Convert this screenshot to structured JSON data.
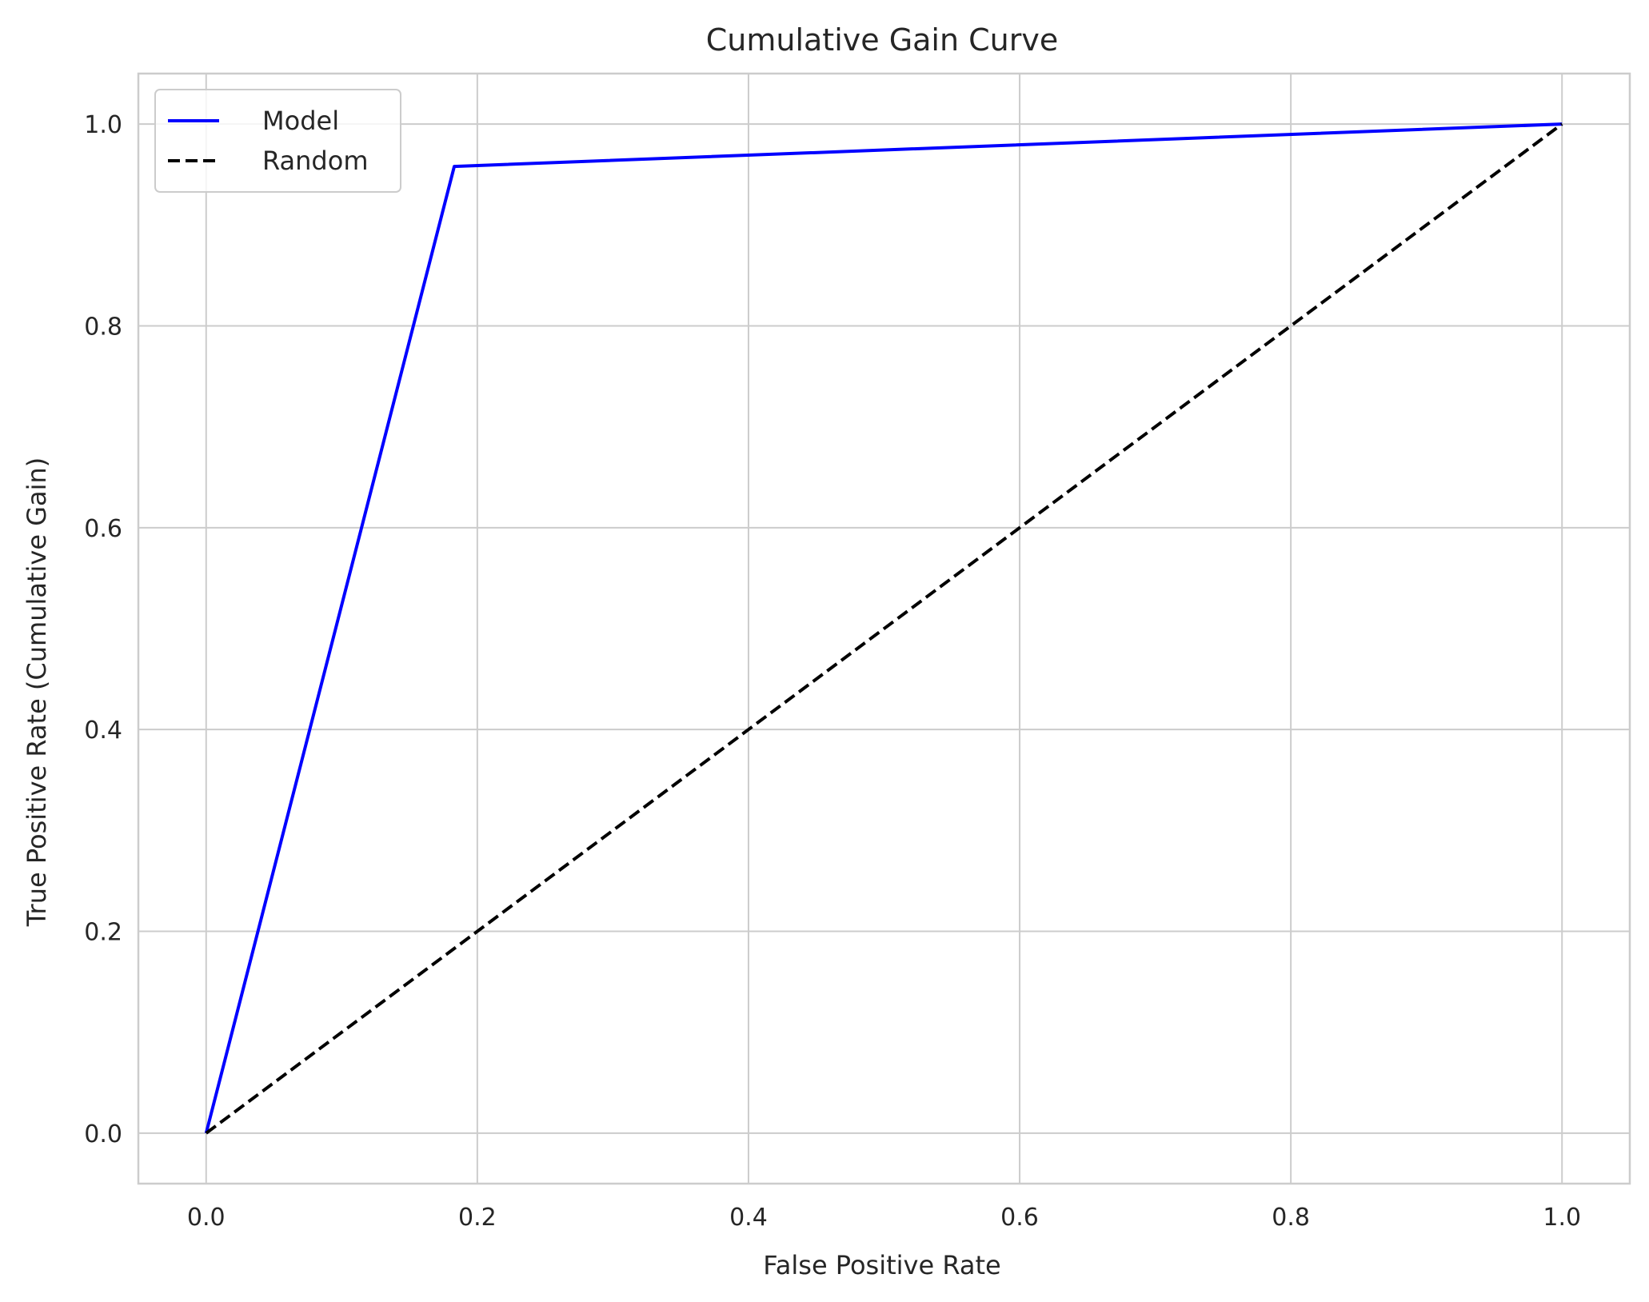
{
  "chart_data": {
    "type": "line",
    "title": "Cumulative Gain Curve",
    "xlabel": "False Positive Rate",
    "ylabel": "True Positive Rate (Cumulative Gain)",
    "xlim": [
      -0.05,
      1.05
    ],
    "ylim": [
      -0.05,
      1.05
    ],
    "xticks": [
      0.0,
      0.2,
      0.4,
      0.6,
      0.8,
      1.0
    ],
    "yticks": [
      0.0,
      0.2,
      0.4,
      0.6,
      0.8,
      1.0
    ],
    "xtick_labels": [
      "0.0",
      "0.2",
      "0.4",
      "0.6",
      "0.8",
      "1.0"
    ],
    "ytick_labels": [
      "0.0",
      "0.2",
      "0.4",
      "0.6",
      "0.8",
      "1.0"
    ],
    "grid": true,
    "legend_position": "upper-left",
    "series": [
      {
        "name": "Model",
        "color": "#0000ff",
        "style": "solid",
        "x": [
          0.0,
          0.183,
          1.0
        ],
        "y": [
          0.0,
          0.958,
          1.0
        ]
      },
      {
        "name": "Random",
        "color": "#000000",
        "style": "dashed",
        "x": [
          0.0,
          1.0
        ],
        "y": [
          0.0,
          1.0
        ]
      }
    ]
  }
}
